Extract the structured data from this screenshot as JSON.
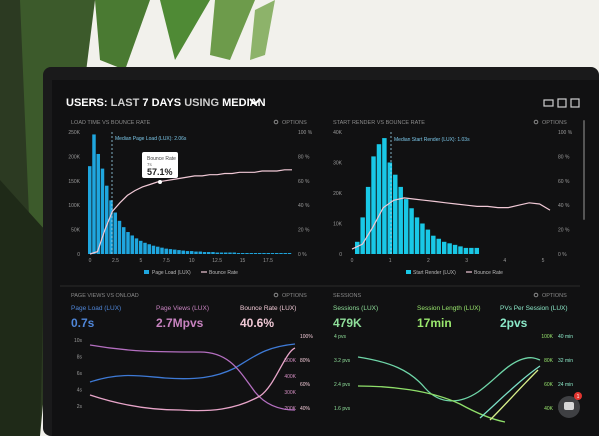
{
  "header": {
    "prefix": "USERS:",
    "mid": "LAST",
    "days": "7 DAYS",
    "using": "USING",
    "median": "MEDIAN"
  },
  "options_label": "OPTIONS",
  "panels": {
    "load_time": {
      "title": "LOAD TIME VS BOUNCE RATE",
      "median_label": "Median Page Load (LUX): 2.06s",
      "tooltip_title": "Bounce Rate",
      "tooltip_sub": "7s",
      "tooltip_value": "57.1%",
      "legend": [
        "Page Load (LUX)",
        "Bounce Rate"
      ]
    },
    "start_render": {
      "title": "START RENDER VS BOUNCE RATE",
      "median_label": "Median Start Render (LUX): 1.03s",
      "legend": [
        "Start Render (LUX)",
        "Bounce Rate"
      ]
    },
    "page_views": {
      "title": "PAGE VIEWS VS ONLOAD",
      "metrics": [
        {
          "label": "Page Load (LUX)",
          "value": "0.7s"
        },
        {
          "label": "Page Views (LUX)",
          "value": "2.7Mpvs"
        },
        {
          "label": "Bounce Rate (LUX)",
          "value": "40.6%"
        }
      ]
    },
    "sessions": {
      "title": "SESSIONS",
      "metrics": [
        {
          "label": "Sessions (LUX)",
          "value": "479K"
        },
        {
          "label": "Session Length (LUX)",
          "value": "17min"
        },
        {
          "label": "PVs Per Session (LUX)",
          "value": "2pvs"
        }
      ]
    }
  },
  "chart_data": [
    {
      "type": "bar",
      "title": "LOAD TIME VS BOUNCE RATE",
      "x_ticks": [
        "0",
        "2.5",
        "5",
        "7.5",
        "10",
        "12.5",
        "15",
        "17.5"
      ],
      "y_ticks_left": [
        "250K",
        "200K",
        "150K",
        "100K",
        "50K",
        "0"
      ],
      "y_ticks_right": [
        "100 %",
        "80 %",
        "60 %",
        "40 %",
        "20 %",
        "0 %"
      ],
      "series": [
        {
          "name": "Page Load (LUX)",
          "values": [
            180,
            245,
            205,
            175,
            140,
            110,
            85,
            68,
            55,
            45,
            38,
            32,
            27,
            23,
            20,
            17,
            15,
            13,
            11,
            10,
            9,
            8,
            7,
            6,
            6,
            5,
            5,
            4,
            4,
            4,
            3,
            3,
            3,
            3,
            3,
            2,
            2,
            2,
            2,
            2,
            2,
            2,
            2,
            2,
            2,
            2,
            2,
            2
          ]
        },
        {
          "name": "Bounce Rate",
          "values": [
            0,
            2,
            20,
            35,
            42,
            48,
            52,
            55,
            57,
            59,
            60,
            61,
            62,
            63,
            64,
            64,
            65,
            65,
            66,
            66,
            67,
            67,
            67,
            68,
            68,
            68,
            69,
            69
          ]
        }
      ]
    },
    {
      "type": "bar",
      "title": "START RENDER VS BOUNCE RATE",
      "x_ticks": [
        "0",
        "1",
        "2",
        "3",
        "4",
        "5"
      ],
      "y_ticks_left": [
        "40K",
        "30K",
        "20K",
        "10K",
        "0"
      ],
      "y_ticks_right": [
        "100 %",
        "80 %",
        "60 %",
        "40 %",
        "20 %",
        "0 %"
      ],
      "series": [
        {
          "name": "Start Render (LUX)",
          "values": [
            4,
            12,
            22,
            32,
            36,
            38,
            30,
            26,
            22,
            18,
            15,
            12,
            10,
            8,
            6,
            5,
            4,
            3.5,
            3,
            2.5,
            2,
            2,
            2
          ]
        },
        {
          "name": "Bounce Rate",
          "values": [
            4,
            8,
            22,
            38,
            44,
            46,
            45,
            44,
            43,
            42,
            41,
            40,
            39,
            39,
            38,
            38,
            40,
            42,
            41,
            36
          ]
        }
      ]
    },
    {
      "type": "line",
      "title": "PAGE VIEWS VS ONLOAD",
      "y_ticks_left": [
        "10s",
        "8s",
        "6s",
        "4s",
        "2s"
      ],
      "y_ticks_mid": [
        "500K",
        "400K",
        "300K",
        "200K"
      ],
      "y_ticks_right": [
        "100%",
        "80%",
        "60%",
        "40%"
      ]
    },
    {
      "type": "line",
      "title": "SESSIONS",
      "y_ticks_left": [
        "4 pvs",
        "3.2 pvs",
        "2.4 pvs",
        "1.6 pvs"
      ],
      "y_ticks_mid": [
        "100K",
        "80K",
        "60K",
        "40K"
      ],
      "y_ticks_right": [
        "40 min",
        "32 min",
        "24 min",
        "16 min"
      ]
    }
  ],
  "colors": {
    "bar": "#1fa6de",
    "bar_cyan": "#19c8e6",
    "bounce": "#f1c9d6",
    "pink": "#d48ec2",
    "blue": "#3e7ad6",
    "green": "#8fdf6a",
    "teal": "#6fdfc0",
    "screen": "#111112"
  },
  "notification_count": "1"
}
